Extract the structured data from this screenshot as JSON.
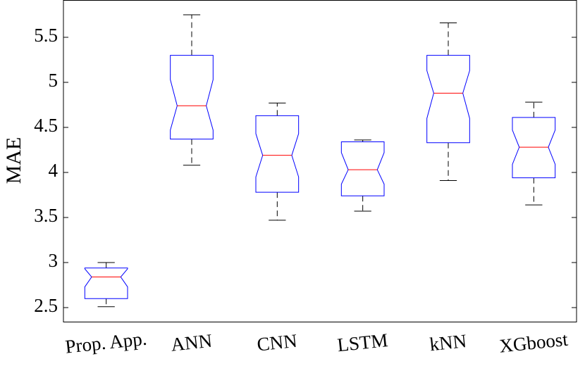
{
  "chart_data": {
    "type": "boxplot",
    "y_label": "MAE",
    "categories": [
      "Prop. App.",
      "ANN",
      "CNN",
      "LSTM",
      "kNN",
      "XGboost"
    ],
    "boxes": [
      {
        "whisker_low": 2.51,
        "q1": 2.6,
        "notch_low": 2.73,
        "median": 2.84,
        "notch_high": 2.93,
        "q3": 2.94,
        "whisker_high": 3.0
      },
      {
        "whisker_low": 4.08,
        "q1": 4.37,
        "notch_low": 4.47,
        "median": 4.74,
        "notch_high": 5.03,
        "q3": 5.3,
        "whisker_high": 5.75
      },
      {
        "whisker_low": 3.47,
        "q1": 3.78,
        "notch_low": 3.95,
        "median": 4.19,
        "notch_high": 4.43,
        "q3": 4.63,
        "whisker_high": 4.77
      },
      {
        "whisker_low": 3.57,
        "q1": 3.74,
        "notch_low": 3.87,
        "median": 4.03,
        "notch_high": 4.22,
        "q3": 4.34,
        "whisker_high": 4.36
      },
      {
        "whisker_low": 3.91,
        "q1": 4.33,
        "notch_low": 4.6,
        "median": 4.88,
        "notch_high": 5.13,
        "q3": 5.3,
        "whisker_high": 5.66
      },
      {
        "whisker_low": 3.64,
        "q1": 3.94,
        "notch_low": 4.09,
        "median": 4.28,
        "notch_high": 4.47,
        "q3": 4.61,
        "whisker_high": 4.78
      }
    ],
    "box_color": "#0000ff",
    "median_color": "#ff0000",
    "whisker_color": "#000000",
    "ylim": [
      2.34,
      5.91
    ],
    "yticks": [
      2.5,
      3,
      3.5,
      4,
      4.5,
      5,
      5.5
    ],
    "grid": false
  }
}
